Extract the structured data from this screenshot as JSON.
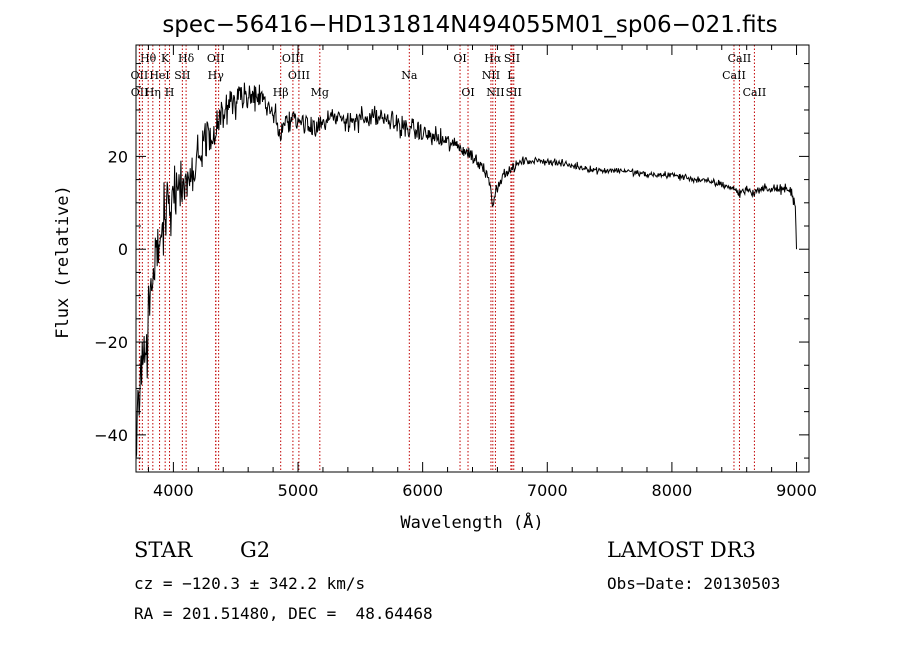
{
  "chart_data": {
    "type": "line",
    "title": "spec−56416−HD131814N494055M01_sp06−021.fits",
    "xlabel": "Wavelength (Å)",
    "ylabel": "Flux (relative)",
    "xlim": [
      3700,
      9100
    ],
    "ylim": [
      -48,
      44
    ],
    "xticks": [
      4000,
      5000,
      6000,
      7000,
      8000,
      9000
    ],
    "yticks": [
      -40,
      -20,
      0,
      20
    ],
    "ytick_labels": [
      "−40",
      "−20",
      "0",
      "20"
    ],
    "line_color": "#000000",
    "marker_color": "#c00000",
    "spectrum_anchors": [
      [
        3700,
        -44
      ],
      [
        3720,
        -38
      ],
      [
        3740,
        -30
      ],
      [
        3760,
        -24
      ],
      [
        3780,
        -20
      ],
      [
        3800,
        -12
      ],
      [
        3830,
        -6
      ],
      [
        3860,
        -2
      ],
      [
        3900,
        4
      ],
      [
        3950,
        8
      ],
      [
        4000,
        12
      ],
      [
        4050,
        14
      ],
      [
        4100,
        15
      ],
      [
        4150,
        17
      ],
      [
        4200,
        20
      ],
      [
        4250,
        23
      ],
      [
        4300,
        25
      ],
      [
        4350,
        27
      ],
      [
        4400,
        30
      ],
      [
        4450,
        31
      ],
      [
        4500,
        32
      ],
      [
        4600,
        33
      ],
      [
        4700,
        32
      ],
      [
        4800,
        30
      ],
      [
        4861,
        25
      ],
      [
        4900,
        28
      ],
      [
        5000,
        28
      ],
      [
        5100,
        27
      ],
      [
        5200,
        27
      ],
      [
        5300,
        28
      ],
      [
        5400,
        28
      ],
      [
        5500,
        28
      ],
      [
        5600,
        28
      ],
      [
        5700,
        28
      ],
      [
        5800,
        27
      ],
      [
        5900,
        26
      ],
      [
        6000,
        25
      ],
      [
        6100,
        24
      ],
      [
        6200,
        23
      ],
      [
        6300,
        22
      ],
      [
        6400,
        20
      ],
      [
        6500,
        17
      ],
      [
        6540,
        15
      ],
      [
        6563,
        9
      ],
      [
        6590,
        13
      ],
      [
        6620,
        15
      ],
      [
        6700,
        17
      ],
      [
        6800,
        19
      ],
      [
        7000,
        19
      ],
      [
        7200,
        18
      ],
      [
        7400,
        17
      ],
      [
        7600,
        17
      ],
      [
        7800,
        16
      ],
      [
        8000,
        16
      ],
      [
        8200,
        15
      ],
      [
        8400,
        14
      ],
      [
        8498,
        13
      ],
      [
        8542,
        12
      ],
      [
        8600,
        13
      ],
      [
        8662,
        12
      ],
      [
        8700,
        13
      ],
      [
        8800,
        13
      ],
      [
        8900,
        13
      ],
      [
        8960,
        12
      ],
      [
        8990,
        10
      ],
      [
        9000,
        0
      ]
    ],
    "noise_sigma": [
      [
        3700,
        8
      ],
      [
        3900,
        6
      ],
      [
        4100,
        4
      ],
      [
        4300,
        3
      ],
      [
        4600,
        2.5
      ],
      [
        5000,
        2
      ],
      [
        6000,
        1.6
      ],
      [
        6500,
        1.1
      ],
      [
        6800,
        0.6
      ],
      [
        7500,
        0.5
      ],
      [
        8500,
        0.6
      ],
      [
        9000,
        0.8
      ]
    ],
    "line_markers": [
      {
        "label": "Hθ",
        "wavelength": 3798,
        "row": 0
      },
      {
        "label": "K",
        "wavelength": 3934,
        "row": 0
      },
      {
        "label": "Hδ",
        "wavelength": 4102,
        "row": 0
      },
      {
        "label": "OII",
        "wavelength": 4340,
        "row": 0
      },
      {
        "label": "OIII",
        "wavelength": 4959,
        "row": 0
      },
      {
        "label": "Na",
        "wavelength": 5893,
        "row": 1
      },
      {
        "label": "OI",
        "wavelength": 6300,
        "row": 0
      },
      {
        "label": "OI",
        "wavelength": 6364,
        "row": 2
      },
      {
        "label": "Hα",
        "wavelength": 6563,
        "row": 0
      },
      {
        "label": "NII",
        "wavelength": 6548,
        "row": 1
      },
      {
        "label": "NII",
        "wavelength": 6584,
        "row": 2
      },
      {
        "label": "SII",
        "wavelength": 6717,
        "row": 0
      },
      {
        "label": "SII",
        "wavelength": 6731,
        "row": 2
      },
      {
        "label": "CaII",
        "wavelength": 8542,
        "row": 0
      },
      {
        "label": "CaII",
        "wavelength": 8498,
        "row": 1
      },
      {
        "label": "CaII",
        "wavelength": 8662,
        "row": 2
      },
      {
        "label": "OII",
        "wavelength": 3727,
        "row": 1
      },
      {
        "label": "OII",
        "wavelength": 3729,
        "row": 2
      },
      {
        "label": "HeI",
        "wavelength": 3889,
        "row": 1
      },
      {
        "label": "Hη",
        "wavelength": 3835,
        "row": 2
      },
      {
        "label": "H",
        "wavelength": 3969,
        "row": 2
      },
      {
        "label": "SII",
        "wavelength": 4072,
        "row": 1
      },
      {
        "label": "Hγ",
        "wavelength": 4340,
        "row": 1
      },
      {
        "label": "Hβ",
        "wavelength": 4861,
        "row": 2
      },
      {
        "label": "OIII",
        "wavelength": 5007,
        "row": 1
      },
      {
        "label": "Mg",
        "wavelength": 5175,
        "row": 2
      },
      {
        "label": "L",
        "wavelength": 6708,
        "row": 1
      },
      {
        "label": "",
        "wavelength": 3751,
        "row": 3
      },
      {
        "label": "",
        "wavelength": 4363,
        "row": 3
      }
    ]
  },
  "info": {
    "object_class": "STAR",
    "subclass": "G2",
    "survey": "LAMOST DR3",
    "redshift_text": "cz = −120.3 ± 342.2 km/s",
    "obs_date_text": "Obs−Date: 20130503",
    "coords_text": "RA = 201.51480, DEC =  48.64468"
  }
}
